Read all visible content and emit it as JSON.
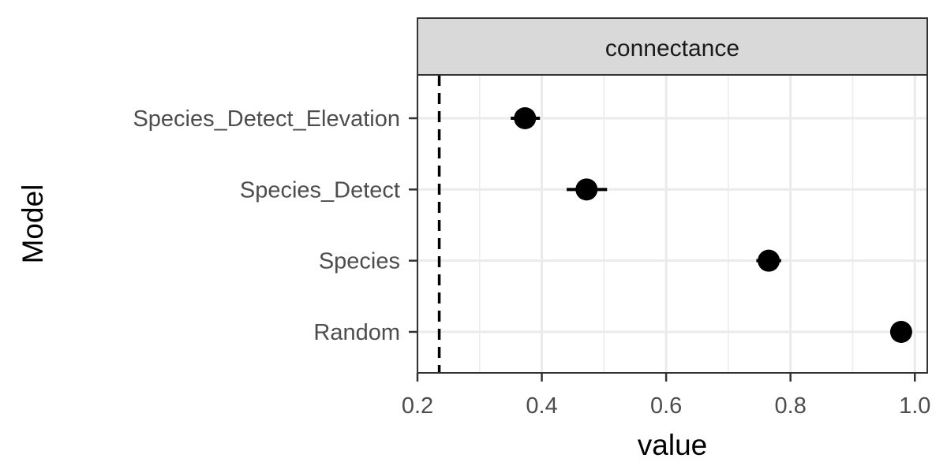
{
  "chart_data": {
    "type": "scatter",
    "facet": "connectance",
    "xlabel": "value",
    "ylabel": "Model",
    "xlim": [
      0.2,
      1.02
    ],
    "xticks": [
      0.2,
      0.4,
      0.6,
      0.8,
      1.0
    ],
    "xtick_labels": [
      "0.2",
      "0.4",
      "0.6",
      "0.8",
      "1.0"
    ],
    "grid": true,
    "reference_line": {
      "x": 0.235,
      "style": "dashed"
    },
    "categories": [
      "Species_Detect_Elevation",
      "Species_Detect",
      "Species",
      "Random"
    ],
    "points": [
      {
        "model": "Species_Detect_Elevation",
        "value": 0.373,
        "low": 0.35,
        "high": 0.397
      },
      {
        "model": "Species_Detect",
        "value": 0.472,
        "low": 0.44,
        "high": 0.505
      },
      {
        "model": "Species",
        "value": 0.765,
        "low": 0.745,
        "high": 0.785
      },
      {
        "model": "Random",
        "value": 0.978,
        "low": 0.972,
        "high": 0.984
      }
    ],
    "colors": {
      "point": "#000000",
      "grid": "#ebebeb",
      "strip": "#d9d9d9",
      "border": "#333333"
    }
  }
}
